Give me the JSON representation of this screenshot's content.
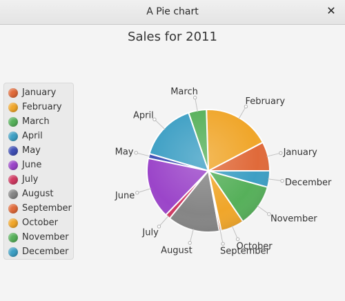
{
  "window": {
    "title": "A Pie chart",
    "close_label": "✕"
  },
  "chart_data": {
    "type": "pie",
    "title": "Sales for 2011",
    "legend_position": "left",
    "categories": [
      "January",
      "February",
      "March",
      "April",
      "May",
      "June",
      "July",
      "August",
      "September",
      "October",
      "November",
      "December"
    ],
    "values": [
      7.5,
      17.4,
      4.6,
      14.9,
      1.2,
      15.7,
      1.3,
      13.4,
      0.5,
      6.0,
      10.9,
      4.2
    ],
    "colors": [
      "#e06a3a",
      "#f0a62a",
      "#56b05a",
      "#3d9fc4",
      "#3f4fb5",
      "#9b45c9",
      "#d03a62",
      "#858585",
      "#e06a3a",
      "#f0a62a",
      "#56b05a",
      "#3d9fc4"
    ],
    "start_angle_deg": 0,
    "direction": "counterclockwise"
  }
}
